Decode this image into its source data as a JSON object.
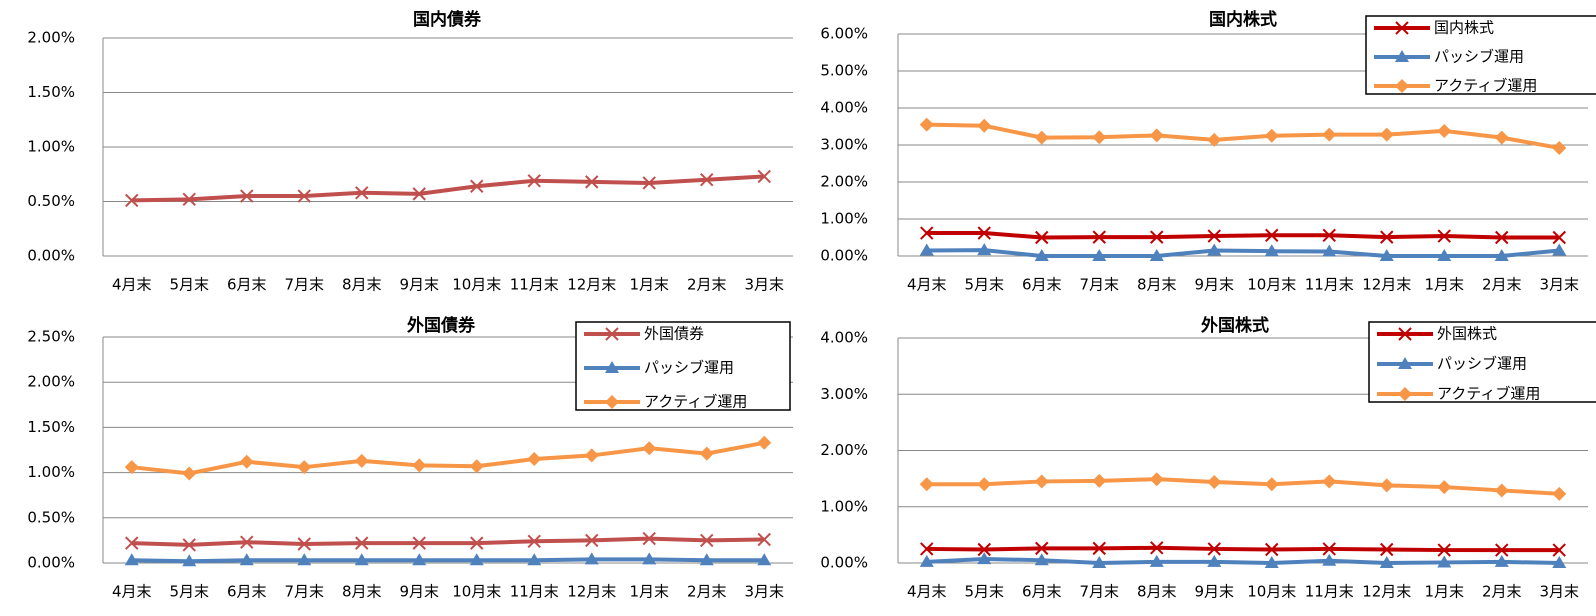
{
  "chart_data": [
    {
      "type": "line",
      "title": "国内債券",
      "categories": [
        "4月末",
        "5月末",
        "6月末",
        "7月末",
        "8月末",
        "9月末",
        "10月末",
        "11月末",
        "12月末",
        "1月末",
        "2月末",
        "3月末"
      ],
      "series": [
        {
          "name": "国内債券",
          "color": "#c0504d",
          "marker": "x",
          "values": [
            0.51,
            0.52,
            0.55,
            0.55,
            0.58,
            0.57,
            0.64,
            0.69,
            0.68,
            0.67,
            0.7,
            0.73
          ]
        }
      ],
      "ylim": [
        0,
        2
      ],
      "yticks": [
        {
          "value": 0,
          "label": "0.00%"
        },
        {
          "value": 0.5,
          "label": "0.50%"
        },
        {
          "value": 1,
          "label": "1.00%"
        },
        {
          "value": 1.5,
          "label": "1.50%"
        },
        {
          "value": 2,
          "label": "2.00%"
        }
      ],
      "grid": true
    },
    {
      "type": "line",
      "title": "国内株式",
      "categories": [
        "4月末",
        "5月末",
        "6月末",
        "7月末",
        "8月末",
        "9月末",
        "10月末",
        "11月末",
        "12月末",
        "1月末",
        "2月末",
        "3月末"
      ],
      "series": [
        {
          "name": "国内株式",
          "color": "#c00000",
          "marker": "x",
          "values": [
            0.62,
            0.62,
            0.5,
            0.51,
            0.51,
            0.54,
            0.56,
            0.56,
            0.51,
            0.54,
            0.5,
            0.5
          ]
        },
        {
          "name": "パッシブ運用",
          "color": "#4f81bd",
          "marker": "triangle",
          "values": [
            0.15,
            0.16,
            0,
            0,
            0,
            0.15,
            0.13,
            0.12,
            0,
            0,
            0,
            0.15
          ]
        },
        {
          "name": "アクティブ運用",
          "color": "#f79646",
          "marker": "diamond",
          "values": [
            3.55,
            3.52,
            3.2,
            3.21,
            3.26,
            3.14,
            3.25,
            3.28,
            3.28,
            3.38,
            3.2,
            2.92
          ]
        }
      ],
      "ylim": [
        0,
        6
      ],
      "yticks": [
        {
          "value": 0,
          "label": "0.00%"
        },
        {
          "value": 1,
          "label": "1.00%"
        },
        {
          "value": 2,
          "label": "2.00%"
        },
        {
          "value": 3,
          "label": "3.00%"
        },
        {
          "value": 4,
          "label": "4.00%"
        },
        {
          "value": 5,
          "label": "5.00%"
        },
        {
          "value": 6,
          "label": "6.00%"
        }
      ],
      "grid": true,
      "legend": "top-right"
    },
    {
      "type": "line",
      "title": "外国債券",
      "categories": [
        "4月末",
        "5月末",
        "6月末",
        "7月末",
        "8月末",
        "9月末",
        "10月末",
        "11月末",
        "12月末",
        "1月末",
        "2月末",
        "3月末"
      ],
      "series": [
        {
          "name": "外国債券",
          "color": "#c0504d",
          "marker": "x",
          "values": [
            0.22,
            0.2,
            0.23,
            0.21,
            0.22,
            0.22,
            0.22,
            0.24,
            0.25,
            0.27,
            0.25,
            0.26
          ]
        },
        {
          "name": "パッシブ運用",
          "color": "#4f81bd",
          "marker": "triangle",
          "values": [
            0.03,
            0.02,
            0.03,
            0.03,
            0.03,
            0.03,
            0.03,
            0.03,
            0.04,
            0.04,
            0.03,
            0.03
          ]
        },
        {
          "name": "アクティブ運用",
          "color": "#f79646",
          "marker": "diamond",
          "values": [
            1.06,
            0.99,
            1.12,
            1.06,
            1.13,
            1.08,
            1.07,
            1.15,
            1.19,
            1.27,
            1.21,
            1.33
          ]
        }
      ],
      "ylim": [
        0,
        2.5
      ],
      "yticks": [
        {
          "value": 0,
          "label": "0.00%"
        },
        {
          "value": 0.5,
          "label": "0.50%"
        },
        {
          "value": 1,
          "label": "1.00%"
        },
        {
          "value": 1.5,
          "label": "1.50%"
        },
        {
          "value": 2,
          "label": "2.00%"
        },
        {
          "value": 2.5,
          "label": "2.50%"
        }
      ],
      "grid": true,
      "legend": "top-right"
    },
    {
      "type": "line",
      "title": "外国株式",
      "categories": [
        "4月末",
        "5月末",
        "6月末",
        "7月末",
        "8月末",
        "9月末",
        "10月末",
        "11月末",
        "12月末",
        "1月末",
        "2月末",
        "3月末"
      ],
      "series": [
        {
          "name": "外国株式",
          "color": "#c00000",
          "marker": "x",
          "values": [
            0.25,
            0.24,
            0.26,
            0.26,
            0.27,
            0.25,
            0.24,
            0.25,
            0.24,
            0.23,
            0.23,
            0.23
          ]
        },
        {
          "name": "パッシブ運用",
          "color": "#4f81bd",
          "marker": "triangle",
          "values": [
            0.02,
            0.07,
            0.05,
            0,
            0.02,
            0.02,
            0,
            0.04,
            0,
            0.01,
            0.02,
            0
          ]
        },
        {
          "name": "アクティブ運用",
          "color": "#f79646",
          "marker": "diamond",
          "values": [
            1.4,
            1.4,
            1.45,
            1.46,
            1.49,
            1.44,
            1.4,
            1.45,
            1.38,
            1.35,
            1.29,
            1.23
          ]
        }
      ],
      "ylim": [
        0,
        4
      ],
      "yticks": [
        {
          "value": 0,
          "label": "0.00%"
        },
        {
          "value": 1,
          "label": "1.00%"
        },
        {
          "value": 2,
          "label": "2.00%"
        },
        {
          "value": 3,
          "label": "3.00%"
        },
        {
          "value": 4,
          "label": "4.00%"
        }
      ],
      "grid": true,
      "legend": "top-right"
    }
  ]
}
